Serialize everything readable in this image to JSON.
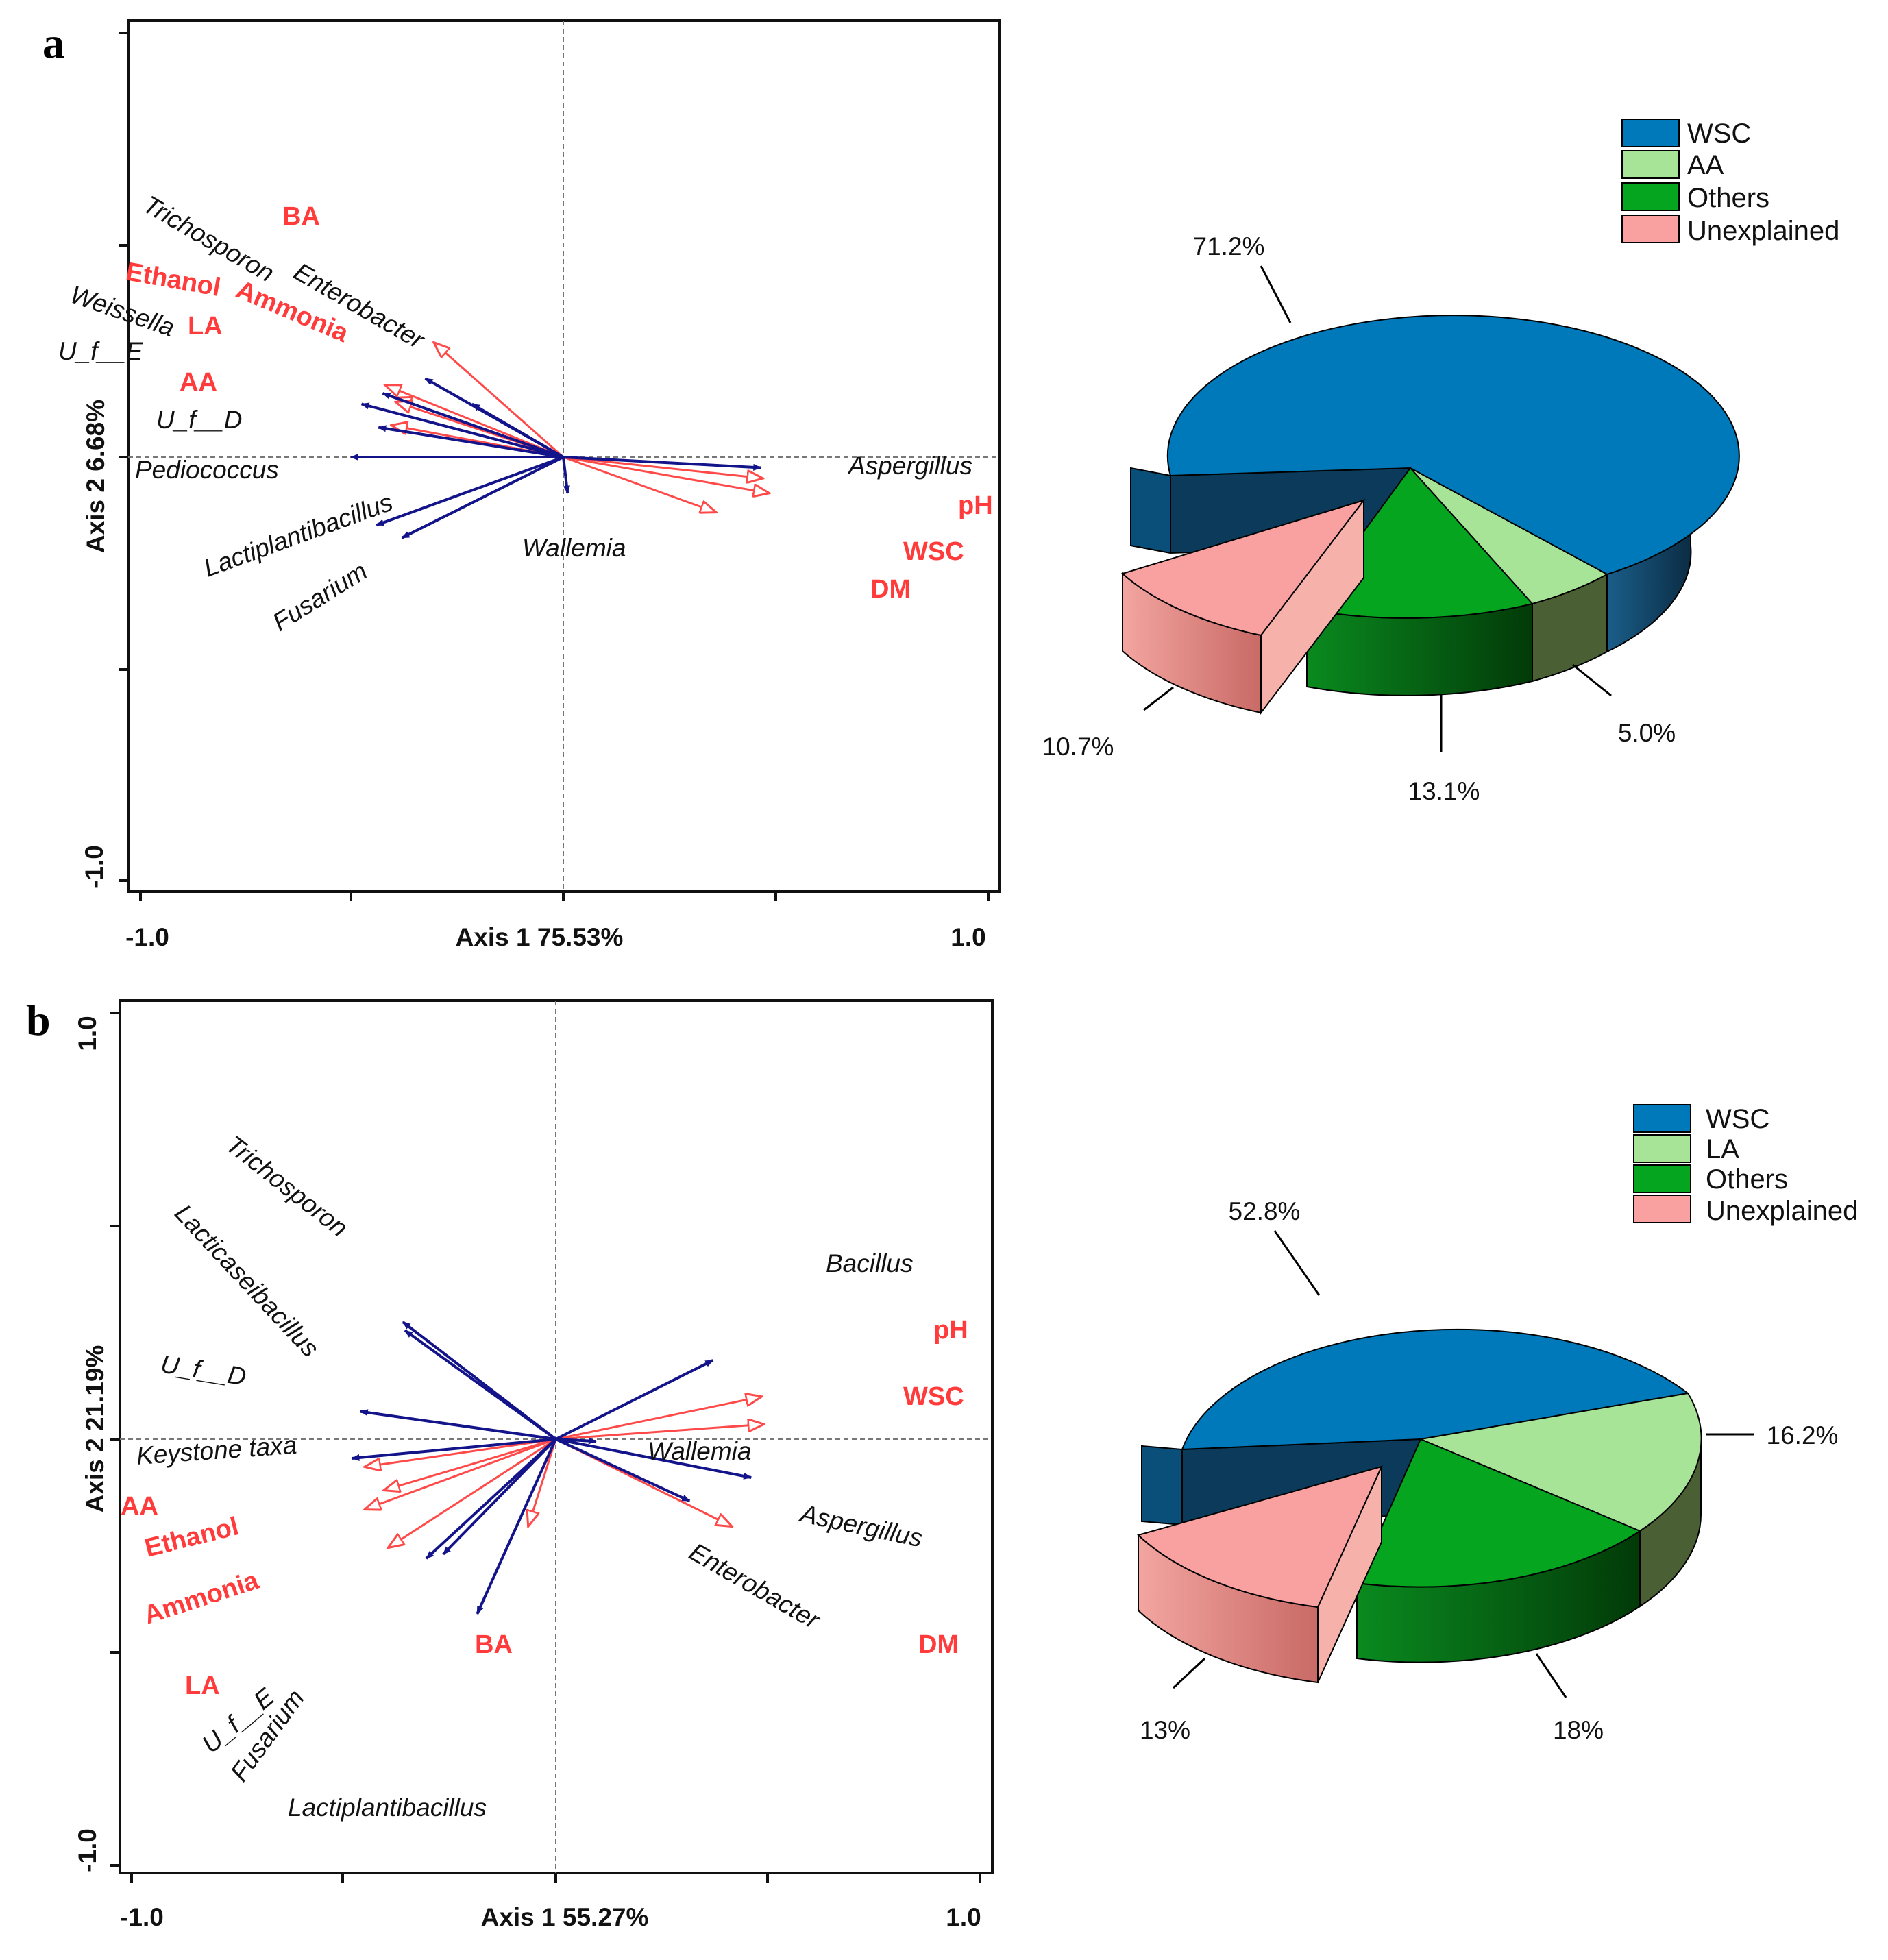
{
  "colors": {
    "species_arrow": "#14148a",
    "env_arrow": "#ff4a4a",
    "env_text": "#ff3b3b",
    "pie": {
      "WSC": "#0079bb",
      "AA": "#a8e497",
      "LA": "#a8e497",
      "Others": "#05a51f",
      "Unexplained": "#f9a0a0"
    }
  },
  "chart_data": [
    {
      "type": "rda-biplot",
      "panel": "a",
      "xlabel": "Axis 1  75.53%",
      "ylabel": "Axis 2  6.68%",
      "xlim": [
        -1.0,
        1.0
      ],
      "ylim": [
        -1.0,
        1.0
      ],
      "x_tick_labels": [
        "-1.0",
        "1.0"
      ],
      "y_tick_labels": [
        "-1.0"
      ],
      "species": [
        {
          "name": "Trichosporon",
          "x": -0.65,
          "y": 0.37
        },
        {
          "name": "Enterobacter",
          "x": -0.43,
          "y": 0.25
        },
        {
          "name": "Weissella",
          "x": -0.85,
          "y": 0.3
        },
        {
          "name": "U_f__E",
          "x": -0.95,
          "y": 0.25
        },
        {
          "name": "U_f__D",
          "x": -0.87,
          "y": 0.14
        },
        {
          "name": "Pediococcus",
          "x": -1.0,
          "y": 0.0
        },
        {
          "name": "Lactiplantibacillus",
          "x": -0.88,
          "y": -0.32
        },
        {
          "name": "Fusarium",
          "x": -0.76,
          "y": -0.38
        },
        {
          "name": "Wallemia",
          "x": 0.02,
          "y": -0.17
        },
        {
          "name": "Aspergillus",
          "x": 0.93,
          "y": -0.05
        }
      ],
      "environmental": [
        {
          "name": "BA",
          "x": -0.61,
          "y": 0.54
        },
        {
          "name": "Ethanol",
          "x": -0.84,
          "y": 0.34
        },
        {
          "name": "Ammonia",
          "x": -0.79,
          "y": 0.28
        },
        {
          "name": "LA",
          "x": -0.79,
          "y": 0.26
        },
        {
          "name": "AA",
          "x": -0.81,
          "y": 0.15
        },
        {
          "name": "pH",
          "x": 0.94,
          "y": -0.1
        },
        {
          "name": "WSC",
          "x": 0.97,
          "y": -0.17
        },
        {
          "name": "DM",
          "x": 0.72,
          "y": -0.26
        }
      ]
    },
    {
      "type": "pie",
      "panel": "a",
      "legend": [
        "WSC",
        "AA",
        "Others",
        "Unexplained"
      ],
      "values": [
        71.2,
        5.0,
        13.1,
        10.7
      ],
      "labels": [
        "71.2%",
        "5.0%",
        "13.1%",
        "10.7%"
      ]
    },
    {
      "type": "rda-biplot",
      "panel": "b",
      "xlabel": "Axis 1  55.27%",
      "ylabel": "Axis 2  21.19%",
      "xlim": [
        -1.0,
        1.0
      ],
      "ylim": [
        -1.0,
        1.0
      ],
      "x_tick_labels": [
        "-1.0",
        "1.0"
      ],
      "y_tick_labels": [
        "1.0",
        "-1.0"
      ],
      "species": [
        {
          "name": "Trichosporon",
          "x": -0.72,
          "y": 0.55
        },
        {
          "name": "Lacticaseibacillus",
          "x": -0.71,
          "y": 0.51
        },
        {
          "name": "U_f__D",
          "x": -0.92,
          "y": 0.13
        },
        {
          "name": "Keystone taxa",
          "x": -0.96,
          "y": -0.09
        },
        {
          "name": "Bacillus",
          "x": 0.74,
          "y": 0.37
        },
        {
          "name": "Wallemia",
          "x": 0.19,
          "y": -0.01
        },
        {
          "name": "Aspergillus",
          "x": 0.92,
          "y": -0.18
        },
        {
          "name": "Enterobacter",
          "x": 0.63,
          "y": -0.29
        },
        {
          "name": "U_f__E",
          "x": -0.61,
          "y": -0.56
        },
        {
          "name": "Fusarium",
          "x": -0.53,
          "y": -0.54
        },
        {
          "name": "Lactiplantibacillus",
          "x": -0.37,
          "y": -0.82
        }
      ],
      "environmental": [
        {
          "name": "pH",
          "x": 0.97,
          "y": 0.2
        },
        {
          "name": "WSC",
          "x": 0.98,
          "y": 0.07
        },
        {
          "name": "DM",
          "x": 0.83,
          "y": -0.41
        },
        {
          "name": "BA",
          "x": -0.13,
          "y": -0.41
        },
        {
          "name": "AA",
          "x": -0.9,
          "y": -0.13
        },
        {
          "name": "Ethanol",
          "x": -0.81,
          "y": -0.24
        },
        {
          "name": "Ammonia",
          "x": -0.9,
          "y": -0.33
        },
        {
          "name": "LA",
          "x": -0.79,
          "y": -0.51
        }
      ]
    },
    {
      "type": "pie",
      "panel": "b",
      "legend": [
        "WSC",
        "LA",
        "Others",
        "Unexplained"
      ],
      "values": [
        52.8,
        16.2,
        18.0,
        13.0
      ],
      "labels": [
        "52.8%",
        "16.2%",
        "18%",
        "13%"
      ]
    }
  ]
}
